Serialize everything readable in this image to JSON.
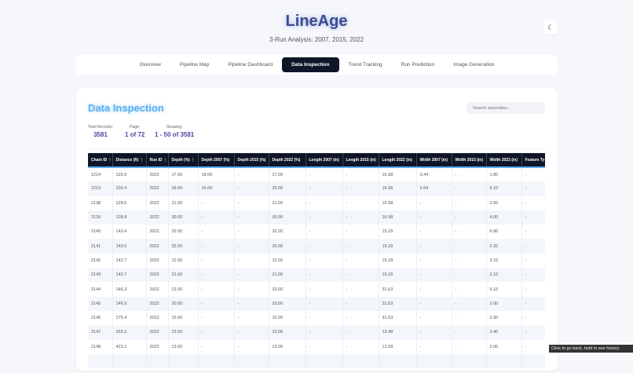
{
  "header": {
    "title": "LineAge",
    "subtitle": "3-Run Analysis: 2007, 2015, 2022",
    "theme_icon": "moon-icon"
  },
  "nav": {
    "tabs": [
      "Overview",
      "Pipeline Map",
      "Pipeline Dashboard",
      "Data Inspection",
      "Trend Tracking",
      "Run Prediction",
      "Image Generation"
    ],
    "active": "Data Inspection"
  },
  "section": {
    "title": "Data Inspection",
    "search_placeholder": "Search anomalies...",
    "stats": {
      "total_label": "Total Records:",
      "total": "3581",
      "page_label": "Page:",
      "page": "1 of 72",
      "showing_label": "Showing:",
      "showing": "1 - 50 of 3581"
    }
  },
  "table": {
    "columns": [
      "Chain ID ⋮",
      "Distance (ft) ⋮",
      "Run ID ⋮",
      "Depth (%) ⋮",
      "Depth 2007 (%)",
      "Depth 2015 (%)",
      "Depth 2022 (%)",
      "Length 2007 (in)",
      "Length 2015 (in)",
      "Length 2022 (in)",
      "Width 2007 (in)",
      "Width 2015 (in)",
      "Width 2022 (in)",
      "Feature Ty"
    ],
    "rows": [
      [
        "1214",
        "125.9",
        "2022",
        "17.00",
        "18.00",
        "-",
        "17.00",
        "-",
        "-",
        "16.98",
        "3.44",
        "-",
        "1.80",
        "-"
      ],
      [
        "1213",
        "126.4",
        "2022",
        "29.00",
        "16.00",
        "-",
        "29.00",
        "-",
        "-",
        "16.98",
        "2.64",
        "-",
        "6.10",
        "-"
      ],
      [
        "2138",
        "128.6",
        "2022",
        "21.00",
        "-",
        "-",
        "21.00",
        "-",
        "-",
        "16.98",
        "-",
        "-",
        "2.60",
        "-"
      ],
      [
        "2139",
        "128.8",
        "2022",
        "30.00",
        "-",
        "-",
        "30.00",
        "-",
        "-",
        "16.98",
        "-",
        "-",
        "4.00",
        "-"
      ],
      [
        "2140",
        "143.4",
        "2022",
        "32.00",
        "-",
        "-",
        "32.00",
        "-",
        "-",
        "15.29",
        "-",
        "-",
        "6.90",
        "-"
      ],
      [
        "2141",
        "143.6",
        "2022",
        "25.00",
        "-",
        "-",
        "25.00",
        "-",
        "-",
        "15.29",
        "-",
        "-",
        "2.20",
        "-"
      ],
      [
        "2142",
        "143.7",
        "2022",
        "12.00",
        "-",
        "-",
        "12.00",
        "-",
        "-",
        "15.29",
        "-",
        "-",
        "3.10",
        "-"
      ],
      [
        "2143",
        "143.7",
        "2022",
        "21.00",
        "-",
        "-",
        "21.00",
        "-",
        "-",
        "15.29",
        "-",
        "-",
        "2.10",
        "-"
      ],
      [
        "2144",
        "146.3",
        "2022",
        "23.00",
        "-",
        "-",
        "23.00",
        "-",
        "-",
        "31.63",
        "-",
        "-",
        "6.10",
        "-"
      ],
      [
        "2145",
        "146.5",
        "2022",
        "20.00",
        "-",
        "-",
        "20.00",
        "-",
        "-",
        "31.63",
        "-",
        "-",
        "2.00",
        "-"
      ],
      [
        "2146",
        "175.4",
        "2022",
        "15.00",
        "-",
        "-",
        "15.00",
        "-",
        "-",
        "31.63",
        "-",
        "-",
        "2.90",
        "-"
      ],
      [
        "2147",
        "265.2",
        "2022",
        "23.00",
        "-",
        "-",
        "23.00",
        "-",
        "-",
        "13.48",
        "-",
        "-",
        "3.40",
        "-"
      ],
      [
        "2148",
        "423.1",
        "2022",
        "13.00",
        "-",
        "-",
        "13.00",
        "-",
        "-",
        "12.09",
        "-",
        "-",
        "2.00",
        "-"
      ]
    ]
  },
  "tooltip": "Click to go back, hold to see history"
}
